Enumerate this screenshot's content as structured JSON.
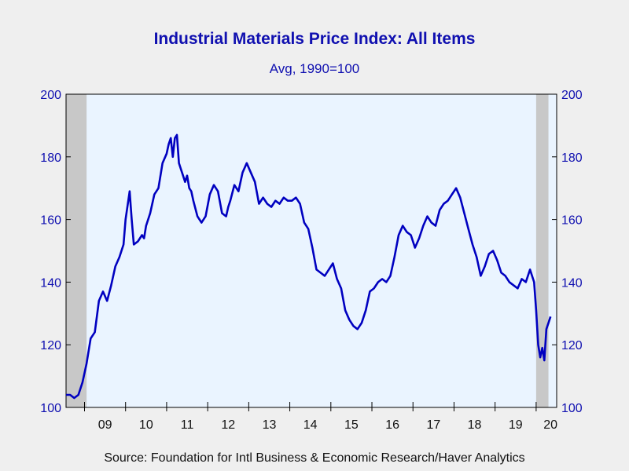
{
  "chart_data": {
    "type": "line",
    "title": "Industrial Materials Price Index: All Items",
    "subtitle": "Avg, 1990=100",
    "source": "Source:  Foundation for Intl Business & Economic Research/Haver Analytics",
    "ylim": [
      100,
      200
    ],
    "yticks": [
      "100",
      "120",
      "140",
      "160",
      "180",
      "200"
    ],
    "xlim": [
      2008.55,
      2020.5
    ],
    "xticks": [
      {
        "label": "09",
        "pos": 2009.5
      },
      {
        "label": "10",
        "pos": 2010.5
      },
      {
        "label": "11",
        "pos": 2011.5
      },
      {
        "label": "12",
        "pos": 2012.5
      },
      {
        "label": "13",
        "pos": 2013.5
      },
      {
        "label": "14",
        "pos": 2014.5
      },
      {
        "label": "15",
        "pos": 2015.5
      },
      {
        "label": "16",
        "pos": 2016.5
      },
      {
        "label": "17",
        "pos": 2017.5
      },
      {
        "label": "18",
        "pos": 2018.5
      },
      {
        "label": "19",
        "pos": 2019.5
      },
      {
        "label": "20",
        "pos": 2020.35
      }
    ],
    "shading": [
      [
        2008.55,
        2009.05
      ],
      [
        2020.0,
        2020.3
      ]
    ],
    "colors": {
      "line": "#0000c0",
      "plot_bg": "#eaf4ff",
      "shade": "#c8c8c8",
      "text": "#1010b0"
    },
    "series": [
      {
        "x": [
          2008.55,
          2008.65,
          2008.75,
          2008.85,
          2008.95,
          2009.05,
          2009.15,
          2009.25,
          2009.35,
          2009.45,
          2009.55,
          2009.65,
          2009.75,
          2009.85,
          2009.95,
          2010.0,
          2010.1,
          2010.15,
          2010.2,
          2010.3,
          2010.4,
          2010.45,
          2010.5,
          2010.6,
          2010.7,
          2010.8,
          2010.9,
          2011.0,
          2011.05,
          2011.1,
          2011.15,
          2011.2,
          2011.25,
          2011.3,
          2011.35,
          2011.4,
          2011.45,
          2011.5,
          2011.55,
          2011.6,
          2011.65,
          2011.75,
          2011.85,
          2011.95,
          2012.05,
          2012.15,
          2012.25,
          2012.35,
          2012.45,
          2012.5,
          2012.55,
          2012.65,
          2012.75,
          2012.85,
          2012.95,
          2013.05,
          2013.15,
          2013.25,
          2013.35,
          2013.45,
          2013.55,
          2013.65,
          2013.75,
          2013.85,
          2013.95,
          2014.05,
          2014.15,
          2014.25,
          2014.35,
          2014.45,
          2014.55,
          2014.65,
          2014.75,
          2014.85,
          2014.95,
          2015.05,
          2015.15,
          2015.25,
          2015.35,
          2015.45,
          2015.55,
          2015.65,
          2015.75,
          2015.85,
          2015.95,
          2016.05,
          2016.15,
          2016.25,
          2016.35,
          2016.45,
          2016.55,
          2016.65,
          2016.75,
          2016.85,
          2016.95,
          2017.05,
          2017.15,
          2017.25,
          2017.35,
          2017.45,
          2017.55,
          2017.65,
          2017.75,
          2017.85,
          2017.95,
          2018.05,
          2018.15,
          2018.25,
          2018.35,
          2018.45,
          2018.55,
          2018.65,
          2018.75,
          2018.85,
          2018.95,
          2019.05,
          2019.15,
          2019.25,
          2019.35,
          2019.45,
          2019.55,
          2019.65,
          2019.75,
          2019.85,
          2019.95,
          2020.0,
          2020.05,
          2020.1,
          2020.15,
          2020.2,
          2020.25,
          2020.3,
          2020.35
        ],
        "values": [
          104,
          104,
          103,
          104,
          108,
          114,
          122,
          124,
          134,
          137,
          134,
          139,
          145,
          148,
          152,
          160,
          169,
          160,
          152,
          153,
          155,
          154,
          158,
          162,
          168,
          170,
          178,
          181,
          184,
          186,
          180,
          186,
          187,
          178,
          176,
          174,
          172,
          174,
          170,
          169,
          166,
          161,
          159,
          161,
          168,
          171,
          169,
          162,
          161,
          164,
          166,
          171,
          169,
          175,
          178,
          175,
          172,
          165,
          167,
          165,
          164,
          166,
          165,
          167,
          166,
          166,
          167,
          165,
          159,
          157,
          151,
          144,
          143,
          142,
          144,
          146,
          141,
          138,
          131,
          128,
          126,
          125,
          127,
          131,
          137,
          138,
          140,
          141,
          140,
          142,
          148,
          155,
          158,
          156,
          155,
          151,
          154,
          158,
          161,
          159,
          158,
          163,
          165,
          166,
          168,
          170,
          167,
          162,
          157,
          152,
          148,
          142,
          145,
          149,
          150,
          147,
          143,
          142,
          140,
          139,
          138,
          141,
          140,
          144,
          140,
          131,
          120,
          116,
          119,
          115,
          125,
          127,
          129
        ]
      }
    ]
  }
}
